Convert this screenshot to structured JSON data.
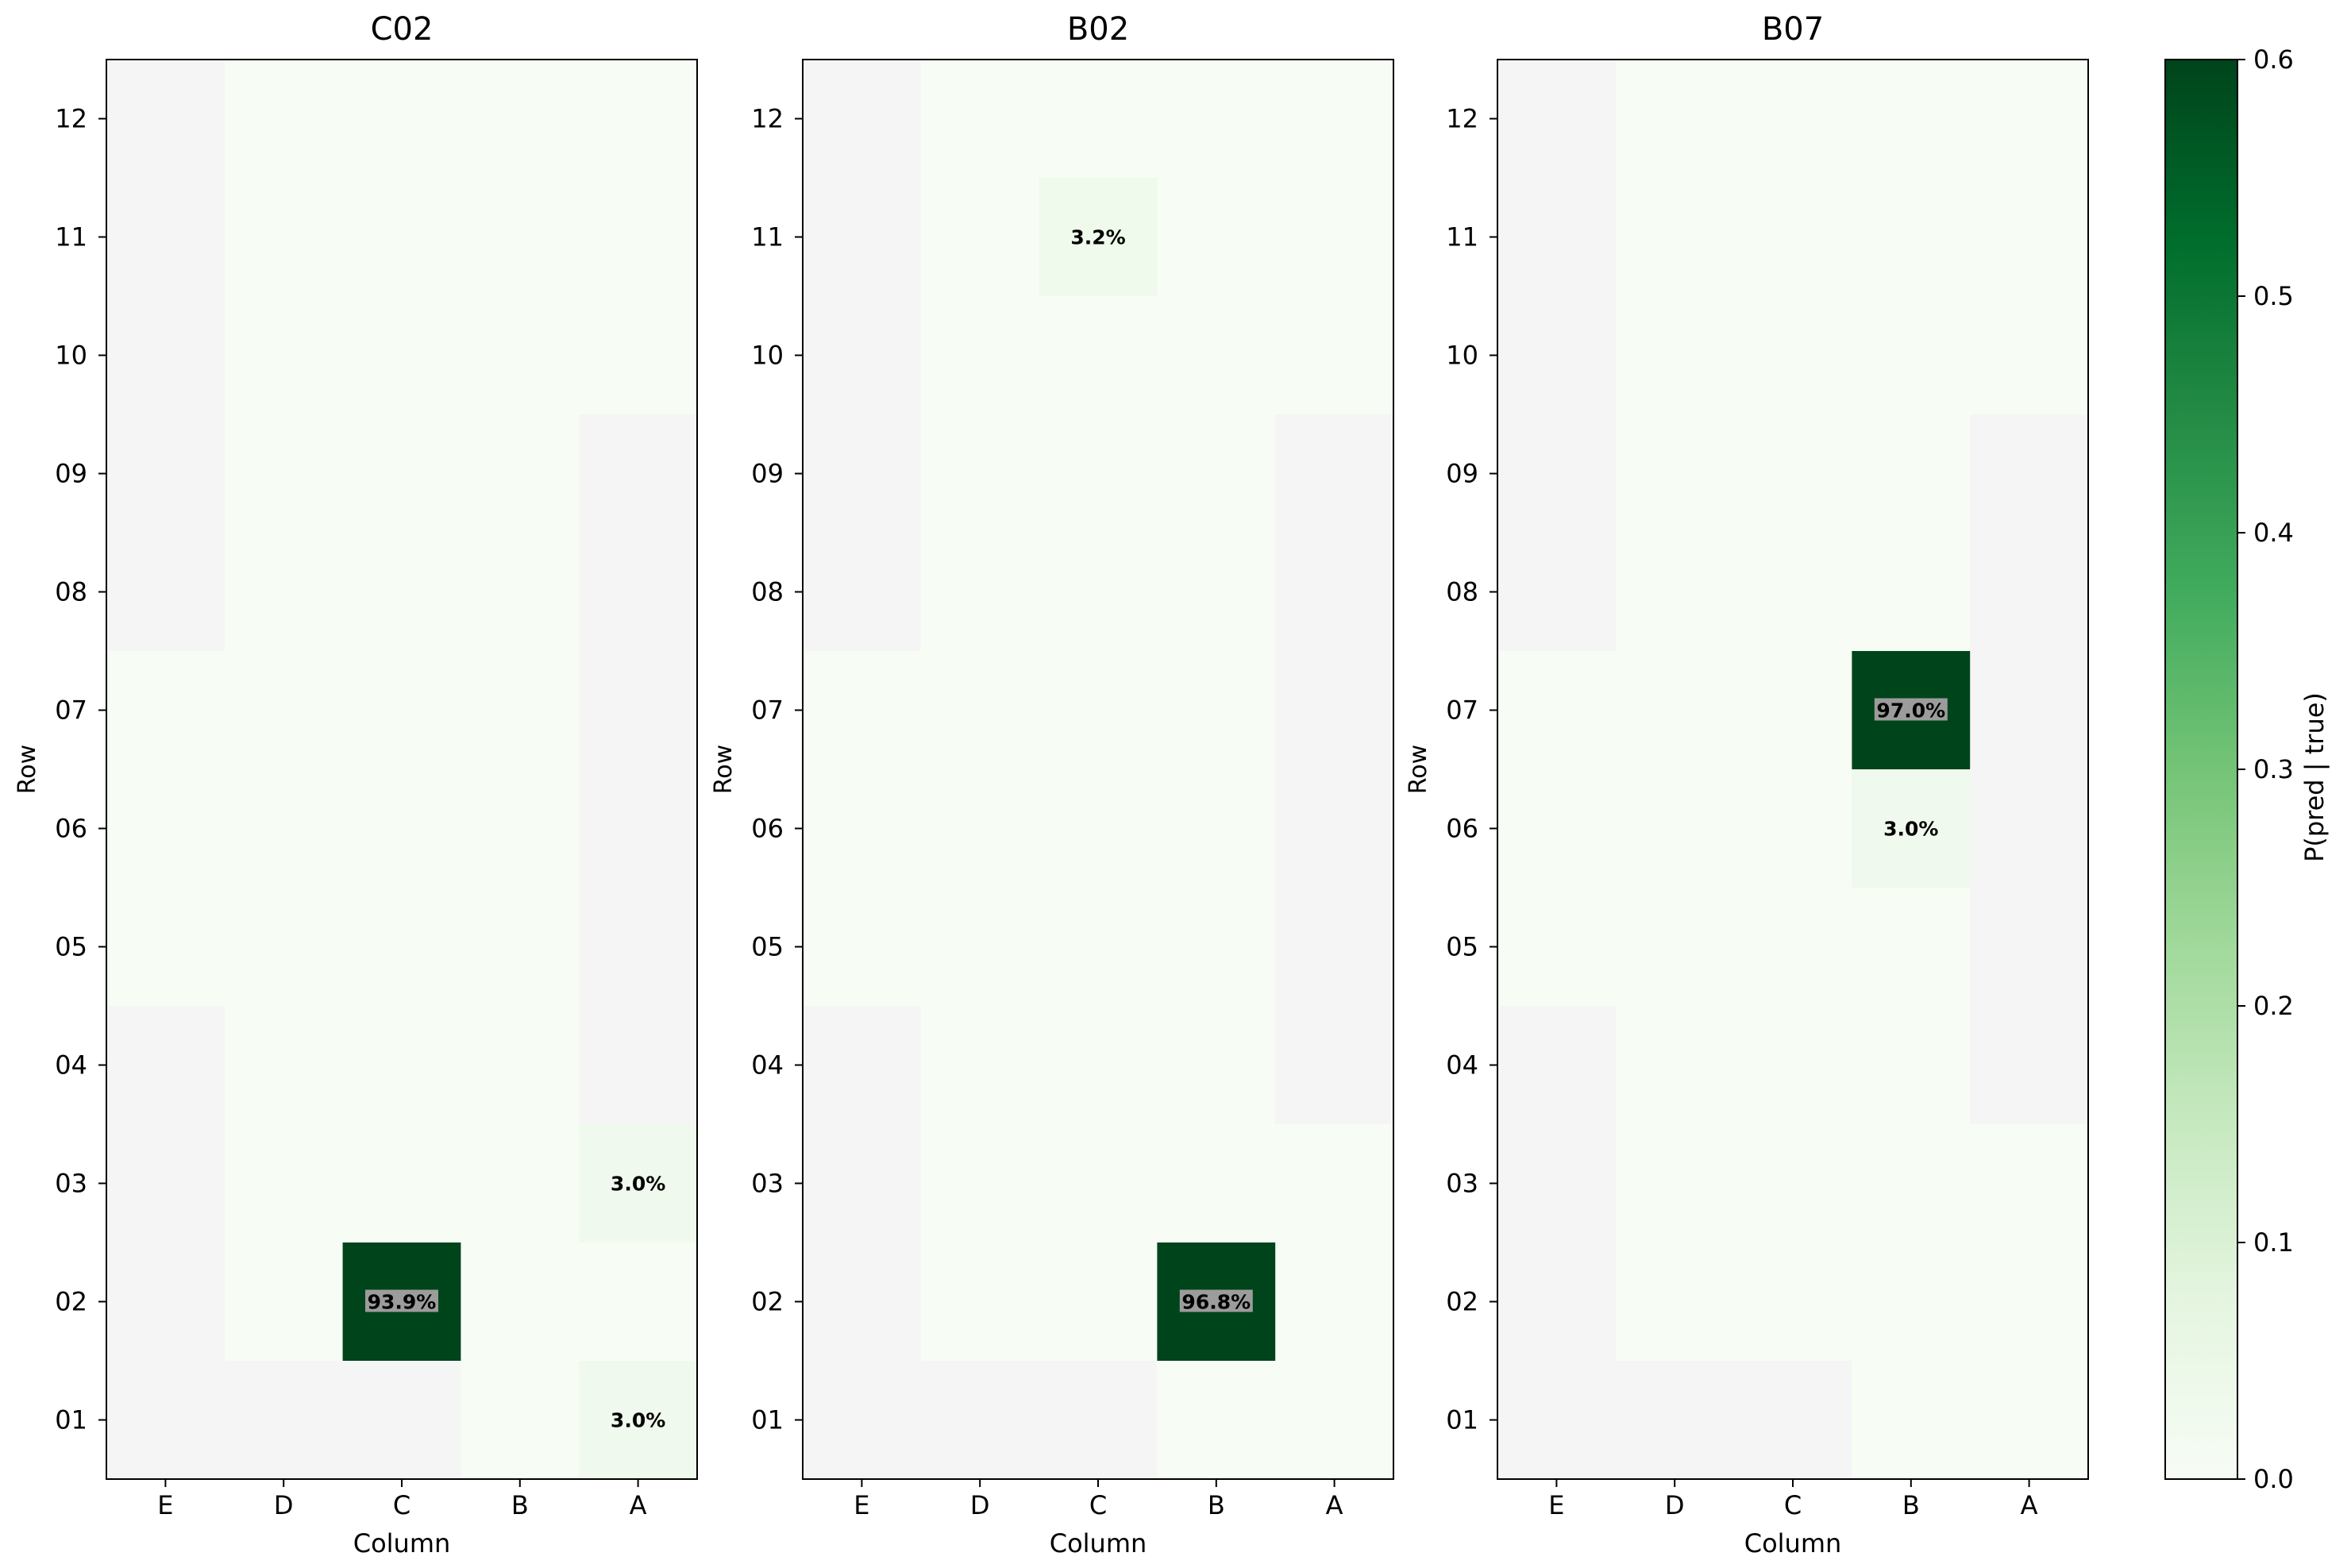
{
  "chart_data": [
    {
      "type": "heatmap",
      "title": "C02",
      "xlabel": "Column",
      "ylabel": "Row",
      "columns": [
        "E",
        "D",
        "C",
        "B",
        "A"
      ],
      "rows": [
        "12",
        "11",
        "10",
        "09",
        "08",
        "07",
        "06",
        "05",
        "04",
        "03",
        "02",
        "01"
      ],
      "masked": [
        [
          "12",
          "E"
        ],
        [
          "11",
          "E"
        ],
        [
          "10",
          "E"
        ],
        [
          "09",
          "E"
        ],
        [
          "08",
          "E"
        ],
        [
          "09",
          "A"
        ],
        [
          "08",
          "A"
        ],
        [
          "07",
          "A"
        ],
        [
          "06",
          "A"
        ],
        [
          "05",
          "A"
        ],
        [
          "04",
          "A"
        ],
        [
          "04",
          "E"
        ],
        [
          "03",
          "E"
        ],
        [
          "02",
          "E"
        ],
        [
          "01",
          "E"
        ],
        [
          "01",
          "D"
        ],
        [
          "01",
          "C"
        ]
      ],
      "cells": [
        {
          "row": "02",
          "col": "C",
          "value": 0.939,
          "label": "93.9%"
        },
        {
          "row": "03",
          "col": "A",
          "value": 0.03,
          "label": "3.0%"
        },
        {
          "row": "01",
          "col": "A",
          "value": 0.03,
          "label": "3.0%"
        }
      ]
    },
    {
      "type": "heatmap",
      "title": "B02",
      "xlabel": "Column",
      "ylabel": "Row",
      "columns": [
        "E",
        "D",
        "C",
        "B",
        "A"
      ],
      "rows": [
        "12",
        "11",
        "10",
        "09",
        "08",
        "07",
        "06",
        "05",
        "04",
        "03",
        "02",
        "01"
      ],
      "masked": [
        [
          "12",
          "E"
        ],
        [
          "11",
          "E"
        ],
        [
          "10",
          "E"
        ],
        [
          "09",
          "E"
        ],
        [
          "08",
          "E"
        ],
        [
          "09",
          "A"
        ],
        [
          "08",
          "A"
        ],
        [
          "07",
          "A"
        ],
        [
          "06",
          "A"
        ],
        [
          "05",
          "A"
        ],
        [
          "04",
          "A"
        ],
        [
          "04",
          "E"
        ],
        [
          "03",
          "E"
        ],
        [
          "02",
          "E"
        ],
        [
          "01",
          "E"
        ],
        [
          "01",
          "D"
        ],
        [
          "01",
          "C"
        ]
      ],
      "cells": [
        {
          "row": "11",
          "col": "C",
          "value": 0.032,
          "label": "3.2%"
        },
        {
          "row": "02",
          "col": "B",
          "value": 0.968,
          "label": "96.8%"
        }
      ]
    },
    {
      "type": "heatmap",
      "title": "B07",
      "xlabel": "Column",
      "ylabel": "Row",
      "columns": [
        "E",
        "D",
        "C",
        "B",
        "A"
      ],
      "rows": [
        "12",
        "11",
        "10",
        "09",
        "08",
        "07",
        "06",
        "05",
        "04",
        "03",
        "02",
        "01"
      ],
      "masked": [
        [
          "12",
          "E"
        ],
        [
          "11",
          "E"
        ],
        [
          "10",
          "E"
        ],
        [
          "09",
          "E"
        ],
        [
          "08",
          "E"
        ],
        [
          "09",
          "A"
        ],
        [
          "08",
          "A"
        ],
        [
          "07",
          "A"
        ],
        [
          "06",
          "A"
        ],
        [
          "05",
          "A"
        ],
        [
          "04",
          "A"
        ],
        [
          "04",
          "E"
        ],
        [
          "03",
          "E"
        ],
        [
          "02",
          "E"
        ],
        [
          "01",
          "E"
        ],
        [
          "01",
          "D"
        ],
        [
          "01",
          "C"
        ]
      ],
      "cells": [
        {
          "row": "07",
          "col": "B",
          "value": 0.97,
          "label": "97.0%"
        },
        {
          "row": "06",
          "col": "B",
          "value": 0.03,
          "label": "3.0%"
        }
      ]
    }
  ],
  "colorbar": {
    "label": "P(pred | true)",
    "min": 0.0,
    "max": 0.6,
    "ticks": [
      "0.0",
      "0.1",
      "0.2",
      "0.3",
      "0.4",
      "0.5",
      "0.6"
    ],
    "colormap": "Greens",
    "colors": [
      "#f7fcf5",
      "#e5f5e0",
      "#c7e9c0",
      "#a1d99b",
      "#74c476",
      "#41ab5d",
      "#238b45",
      "#006d2c",
      "#00441b"
    ],
    "masked_color": "#f5f5f5"
  }
}
